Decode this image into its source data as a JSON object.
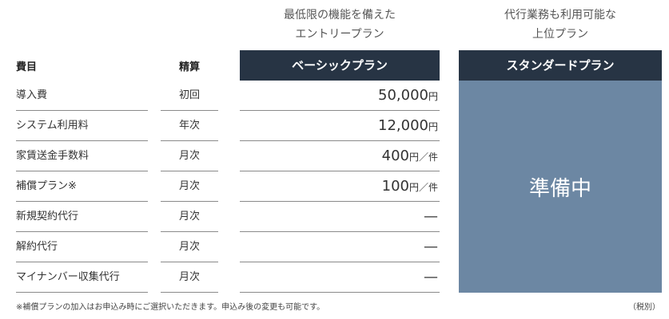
{
  "plans": {
    "basic": {
      "description": [
        "最低限の機能を備えた",
        "エントリープラン"
      ],
      "name": "ベーシックプラン"
    },
    "standard": {
      "description": [
        "代行業務も利用可能な",
        "上位プラン"
      ],
      "name": "スタンダードプラン",
      "status": "準備中"
    }
  },
  "columns": {
    "item": "費目",
    "frequency": "精算"
  },
  "rows": [
    {
      "name": "導入費",
      "frequency": "初回",
      "price": "50,000",
      "unit": "円"
    },
    {
      "name": "システム利用料",
      "frequency": "年次",
      "price": "12,000",
      "unit": "円"
    },
    {
      "name": "家賃送金手数料",
      "frequency": "月次",
      "price": "400",
      "unit": "円／件"
    },
    {
      "name": "補償プラン※",
      "frequency": "月次",
      "price": "100",
      "unit": "円／件"
    },
    {
      "name": "新規契約代行",
      "frequency": "月次",
      "price": "—",
      "unit": ""
    },
    {
      "name": "解約代行",
      "frequency": "月次",
      "price": "—",
      "unit": ""
    },
    {
      "name": "マイナンバー収集代行",
      "frequency": "月次",
      "price": "—",
      "unit": ""
    }
  ],
  "footnote": "※補償プランの加入はお申込み時にご選択いただきます。申込み後の変更も可能です。",
  "tax_note": "（税別）"
}
